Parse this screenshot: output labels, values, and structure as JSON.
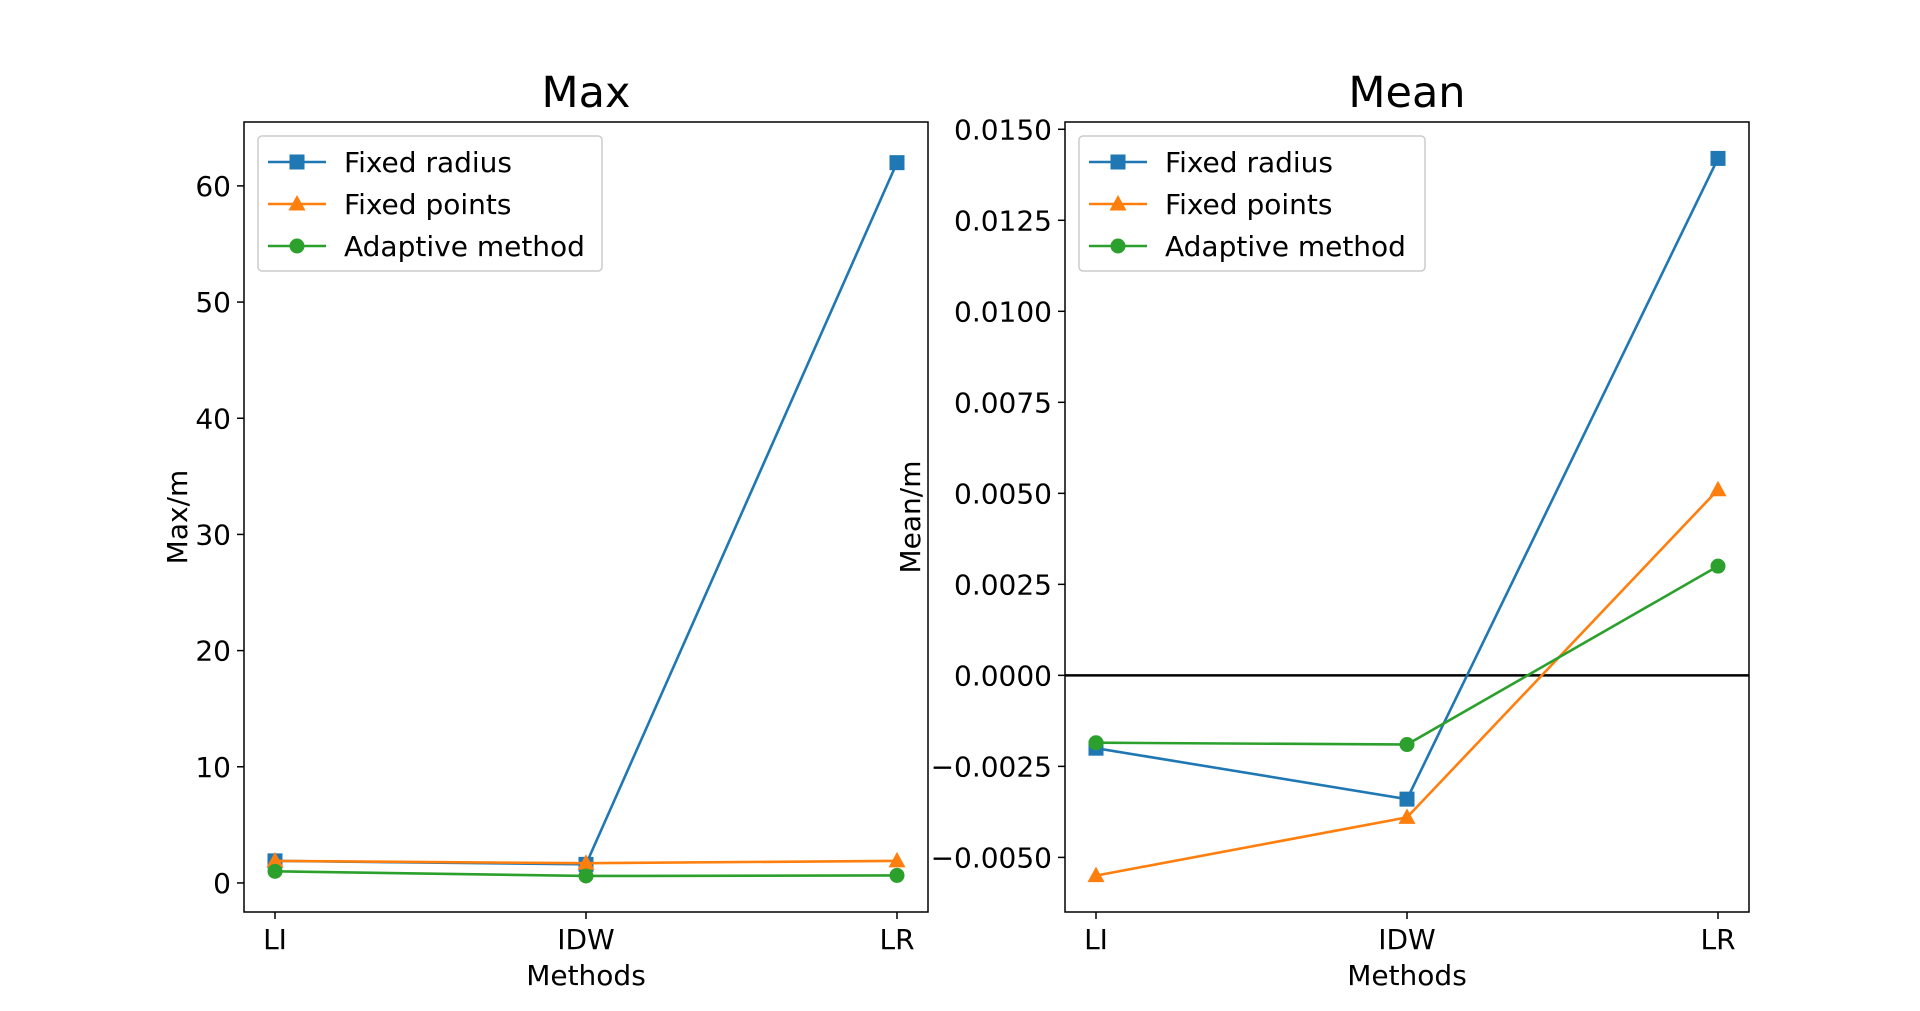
{
  "chart_data": [
    {
      "type": "line",
      "title": "Max",
      "xlabel": "Methods",
      "ylabel": "Max/m",
      "categories": [
        "LI",
        "IDW",
        "LR"
      ],
      "ylim": [
        -2.5,
        65.5
      ],
      "yticks": [
        0,
        10,
        20,
        30,
        40,
        50,
        60
      ],
      "ytick_labels": [
        "0",
        "10",
        "20",
        "30",
        "40",
        "50",
        "60"
      ],
      "legend_position": "upper-left",
      "grid": false,
      "series": [
        {
          "name": "Fixed radius",
          "values": [
            1.9,
            1.6,
            62.0
          ],
          "color": "#1f77b4",
          "marker": "square"
        },
        {
          "name": "Fixed points",
          "values": [
            1.9,
            1.7,
            1.9
          ],
          "color": "#ff7f0e",
          "marker": "triangle"
        },
        {
          "name": "Adaptive method",
          "values": [
            1.0,
            0.6,
            0.65
          ],
          "color": "#2ca02c",
          "marker": "circle"
        }
      ]
    },
    {
      "type": "line",
      "title": "Mean",
      "xlabel": "Methods",
      "ylabel": "Mean/m",
      "categories": [
        "LI",
        "IDW",
        "LR"
      ],
      "ylim": [
        -0.0065,
        0.0152
      ],
      "yticks": [
        -0.005,
        -0.0025,
        0.0,
        0.0025,
        0.005,
        0.0075,
        0.01,
        0.0125,
        0.015
      ],
      "ytick_labels": [
        "−0.0050",
        "−0.0025",
        "0.0000",
        "0.0025",
        "0.0050",
        "0.0075",
        "0.0100",
        "0.0125",
        "0.0150"
      ],
      "reference_line_y": 0.0,
      "legend_position": "upper-left",
      "grid": false,
      "series": [
        {
          "name": "Fixed radius",
          "values": [
            -0.002,
            -0.0034,
            0.0142
          ],
          "color": "#1f77b4",
          "marker": "square"
        },
        {
          "name": "Fixed points",
          "values": [
            -0.0055,
            -0.0039,
            0.0051
          ],
          "color": "#ff7f0e",
          "marker": "triangle"
        },
        {
          "name": "Adaptive method",
          "values": [
            -0.00185,
            -0.0019,
            0.003
          ],
          "color": "#2ca02c",
          "marker": "circle"
        }
      ]
    }
  ]
}
